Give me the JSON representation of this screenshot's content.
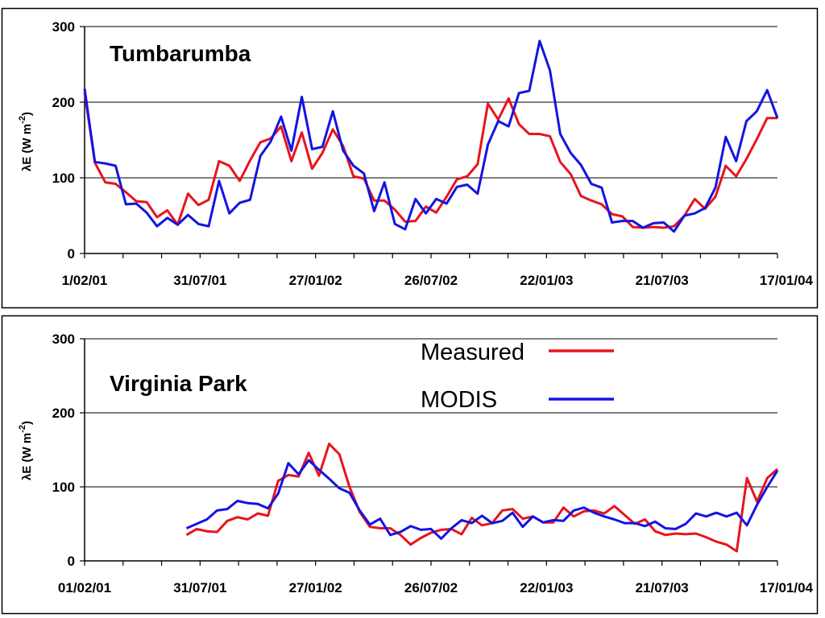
{
  "colors": {
    "measured": "#e8141c",
    "modis": "#1414e0",
    "grid": "#000000"
  },
  "chart_data": [
    {
      "type": "line",
      "title": "Tumbarumba",
      "ylabel_main": "λE (W m",
      "ylabel_sup": "-2",
      "ylabel_close": ")",
      "ylim": [
        0,
        300
      ],
      "yticks": [
        0,
        100,
        200,
        300
      ],
      "xticks": [
        "1/02/01",
        "31/07/01",
        "27/01/02",
        "26/07/02",
        "22/01/03",
        "21/07/03",
        "17/01/04"
      ],
      "grid": true,
      "series": [
        {
          "key": "measured",
          "values": [
            213,
            120,
            94,
            92,
            81,
            69,
            68,
            48,
            57,
            38,
            79,
            64,
            71,
            122,
            116,
            96,
            123,
            147,
            152,
            168,
            122,
            160,
            112,
            133,
            164,
            142,
            102,
            99,
            70,
            70,
            58,
            42,
            43,
            62,
            54,
            75,
            98,
            102,
            118,
            198,
            177,
            205,
            171,
            158,
            158,
            155,
            121,
            105,
            76,
            70,
            65,
            52,
            49,
            35,
            34,
            35,
            34,
            36,
            50,
            72,
            59,
            75,
            116,
            102,
            125,
            151,
            179,
            179
          ]
        },
        {
          "key": "modis",
          "values": [
            218,
            121,
            119,
            116,
            65,
            66,
            54,
            36,
            47,
            38,
            51,
            39,
            36,
            96,
            53,
            67,
            71,
            129,
            148,
            181,
            136,
            207,
            138,
            141,
            188,
            136,
            116,
            106,
            56,
            94,
            39,
            32,
            72,
            53,
            72,
            66,
            88,
            91,
            79,
            144,
            175,
            168,
            212,
            215,
            281,
            242,
            158,
            133,
            117,
            92,
            87,
            41,
            43,
            43,
            34,
            40,
            41,
            29,
            50,
            53,
            60,
            87,
            154,
            122,
            175,
            188,
            216,
            179
          ]
        }
      ]
    },
    {
      "type": "line",
      "title": "Virginia Park",
      "ylabel_main": "λE (W m",
      "ylabel_sup": "-2",
      "ylabel_close": ")",
      "ylim": [
        0,
        300
      ],
      "yticks": [
        0,
        100,
        200,
        300
      ],
      "xticks": [
        "01/02/01",
        "31/07/01",
        "27/01/02",
        "26/07/02",
        "22/01/03",
        "21/07/03",
        "17/01/04"
      ],
      "grid": true,
      "legend": {
        "position": "top-right",
        "entries": [
          "Measured",
          "MODIS"
        ]
      },
      "series": [
        {
          "key": "measured",
          "values": [
            null,
            null,
            null,
            null,
            null,
            null,
            null,
            null,
            null,
            null,
            35,
            43,
            40,
            39,
            54,
            59,
            56,
            64,
            61,
            108,
            116,
            114,
            146,
            115,
            158,
            144,
            100,
            66,
            46,
            44,
            44,
            35,
            22,
            31,
            38,
            42,
            43,
            36,
            58,
            48,
            51,
            68,
            70,
            57,
            60,
            52,
            52,
            72,
            60,
            67,
            68,
            64,
            74,
            62,
            50,
            56,
            40,
            35,
            37,
            36,
            37,
            32,
            26,
            22,
            13,
            112,
            80,
            112,
            124
          ]
        },
        {
          "key": "modis",
          "values": [
            null,
            null,
            null,
            null,
            null,
            null,
            null,
            null,
            null,
            null,
            44,
            50,
            56,
            68,
            70,
            81,
            78,
            77,
            71,
            91,
            132,
            117,
            136,
            123,
            111,
            98,
            92,
            68,
            49,
            57,
            35,
            39,
            47,
            42,
            43,
            30,
            44,
            55,
            51,
            61,
            51,
            54,
            65,
            46,
            60,
            52,
            55,
            54,
            68,
            72,
            65,
            60,
            56,
            51,
            51,
            47,
            53,
            44,
            43,
            50,
            64,
            60,
            65,
            60,
            65,
            48,
            76,
            100,
            122
          ]
        }
      ]
    }
  ]
}
